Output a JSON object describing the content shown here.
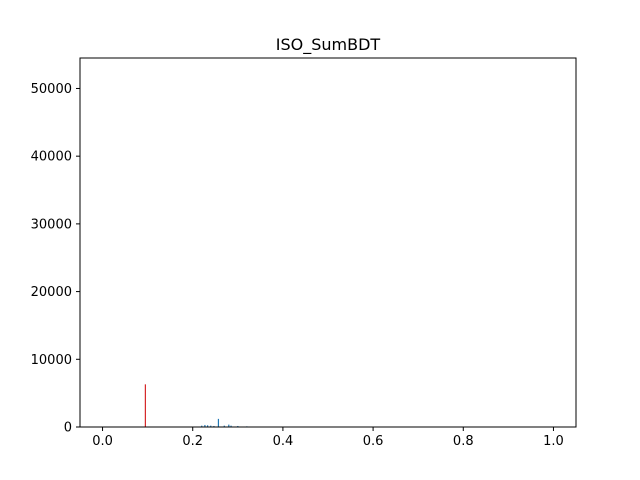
{
  "chart_data": {
    "type": "bar",
    "title": "ISO_SumBDT",
    "xlabel": "",
    "ylabel": "",
    "xlim": [
      -0.05,
      1.05
    ],
    "ylim": [
      0,
      54500
    ],
    "grid": false,
    "x_ticks": [
      0.0,
      0.2,
      0.4,
      0.6,
      0.8,
      1.0
    ],
    "x_tick_labels": [
      "0.0",
      "0.2",
      "0.4",
      "0.6",
      "0.8",
      "1.0"
    ],
    "y_ticks": [
      0,
      10000,
      20000,
      30000,
      40000,
      50000
    ],
    "y_tick_labels": [
      "0",
      "10000",
      "20000",
      "30000",
      "40000",
      "50000"
    ],
    "series": [
      {
        "color": "#d62728",
        "x": [
          0.095
        ],
        "values": [
          6300
        ]
      },
      {
        "color": "#1f77b4",
        "x": [
          0.22,
          0.227,
          0.233,
          0.24,
          0.247,
          0.257,
          0.27,
          0.28,
          0.285,
          0.3,
          0.32
        ],
        "values": [
          200,
          300,
          250,
          200,
          150,
          1200,
          200,
          350,
          200,
          150,
          100
        ]
      }
    ]
  }
}
